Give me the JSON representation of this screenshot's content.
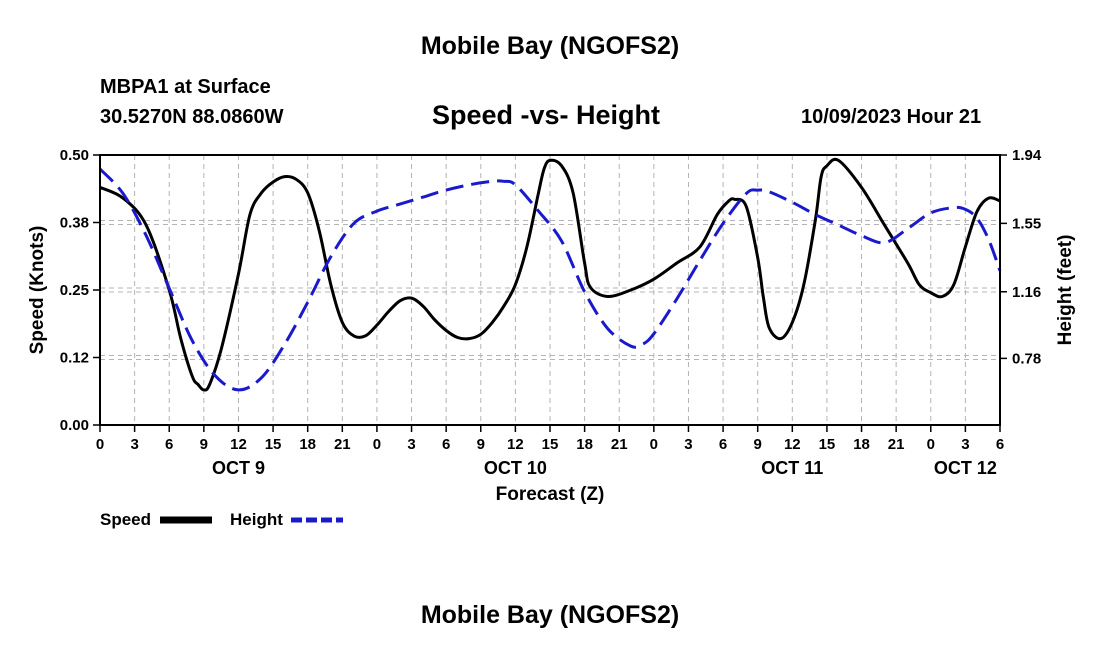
{
  "page": {
    "title": "Mobile Bay (NGOFS2)",
    "station": "MBPA1 at Surface",
    "coords": "30.5270N  88.0860W",
    "subtitle": "Speed -vs- Height",
    "datetime": "10/09/2023 Hour 21",
    "footer_title": "Mobile Bay (NGOFS2)"
  },
  "colors": {
    "speed": "#000000",
    "height": "#1a1acc",
    "grid": "#b4b4b4"
  },
  "chart_data": {
    "type": "line",
    "xlabel": "Forecast (Z)",
    "ylabel_left": "Speed (Knots)",
    "ylabel_right": "Height (feet)",
    "x_unit": "hours since 2023-10-09 00Z",
    "xlim": [
      0,
      78
    ],
    "ylim_left": [
      0,
      0.5
    ],
    "ylim_right": [
      0.4,
      1.94
    ],
    "x_ticks": [
      0,
      3,
      6,
      9,
      12,
      15,
      18,
      21,
      24,
      27,
      30,
      33,
      36,
      39,
      42,
      45,
      48,
      51,
      54,
      57,
      60,
      63,
      66,
      69,
      72,
      75,
      78
    ],
    "x_tick_labels": [
      "0",
      "3",
      "6",
      "9",
      "12",
      "15",
      "18",
      "21",
      "0",
      "3",
      "6",
      "9",
      "12",
      "15",
      "18",
      "21",
      "0",
      "3",
      "6",
      "9",
      "12",
      "15",
      "18",
      "21",
      "0",
      "3",
      "6"
    ],
    "date_labels": [
      {
        "x": 12,
        "label": "OCT 9"
      },
      {
        "x": 36,
        "label": "OCT 10"
      },
      {
        "x": 60,
        "label": "OCT 11"
      },
      {
        "x": 75,
        "label": "OCT 12"
      }
    ],
    "left_ticks": [
      {
        "value": 0.0,
        "label": "0.00"
      },
      {
        "value": 0.125,
        "label": "0.12"
      },
      {
        "value": 0.25,
        "label": "0.25"
      },
      {
        "value": 0.375,
        "label": "0.38"
      },
      {
        "value": 0.5,
        "label": "0.50"
      }
    ],
    "right_ticks": [
      {
        "value": 0.78,
        "label": "0.78"
      },
      {
        "value": 1.16,
        "label": "1.16"
      },
      {
        "value": 1.55,
        "label": "1.55"
      },
      {
        "value": 1.94,
        "label": "1.94"
      }
    ],
    "grid": true,
    "legend_position": "bottom-left",
    "series": [
      {
        "name": "Speed",
        "axis": "left",
        "style": "solid",
        "x": [
          0,
          2,
          4,
          6,
          7,
          8,
          8.5,
          9,
          9.5,
          10.5,
          12,
          13,
          14,
          15,
          16,
          17,
          18,
          19,
          20,
          21,
          22,
          23,
          24,
          25,
          26,
          27,
          28,
          29,
          30,
          31,
          32,
          33,
          34,
          35,
          36,
          37,
          38,
          38.5,
          39,
          40,
          41,
          42,
          42.5,
          44,
          46,
          48,
          50,
          52,
          53.5,
          54.5,
          55,
          56,
          57,
          57.5,
          58,
          59,
          60,
          61,
          62,
          62.5,
          63,
          64,
          66,
          68,
          70,
          71,
          72,
          73,
          74,
          75,
          76,
          77,
          78
        ],
        "values": [
          0.44,
          0.42,
          0.37,
          0.25,
          0.16,
          0.09,
          0.075,
          0.065,
          0.075,
          0.14,
          0.28,
          0.39,
          0.43,
          0.45,
          0.46,
          0.455,
          0.43,
          0.36,
          0.26,
          0.19,
          0.165,
          0.165,
          0.185,
          0.21,
          0.23,
          0.235,
          0.22,
          0.195,
          0.175,
          0.162,
          0.16,
          0.168,
          0.19,
          0.22,
          0.26,
          0.33,
          0.43,
          0.475,
          0.49,
          0.48,
          0.43,
          0.3,
          0.255,
          0.238,
          0.25,
          0.27,
          0.3,
          0.33,
          0.39,
          0.415,
          0.418,
          0.405,
          0.31,
          0.235,
          0.18,
          0.16,
          0.19,
          0.26,
          0.38,
          0.46,
          0.48,
          0.49,
          0.44,
          0.37,
          0.3,
          0.26,
          0.245,
          0.238,
          0.26,
          0.33,
          0.395,
          0.42,
          0.415
        ]
      },
      {
        "name": "Height",
        "axis": "right",
        "style": "dashed",
        "x": [
          0,
          2,
          4,
          6,
          8,
          10,
          12,
          14,
          16,
          18,
          20,
          22,
          24,
          26,
          28,
          30,
          32,
          34,
          35,
          36,
          38,
          40,
          42,
          44,
          46,
          47,
          48,
          50,
          52,
          54,
          56,
          57,
          58,
          60,
          62,
          64,
          66,
          68,
          70,
          72,
          74,
          75,
          76,
          77,
          78
        ],
        "values": [
          1.86,
          1.72,
          1.48,
          1.18,
          0.88,
          0.68,
          0.6,
          0.67,
          0.86,
          1.1,
          1.36,
          1.55,
          1.62,
          1.66,
          1.7,
          1.74,
          1.77,
          1.79,
          1.79,
          1.77,
          1.62,
          1.45,
          1.16,
          0.95,
          0.85,
          0.86,
          0.92,
          1.12,
          1.34,
          1.55,
          1.72,
          1.74,
          1.73,
          1.67,
          1.6,
          1.54,
          1.48,
          1.44,
          1.52,
          1.61,
          1.64,
          1.63,
          1.58,
          1.46,
          1.28
        ]
      }
    ]
  }
}
